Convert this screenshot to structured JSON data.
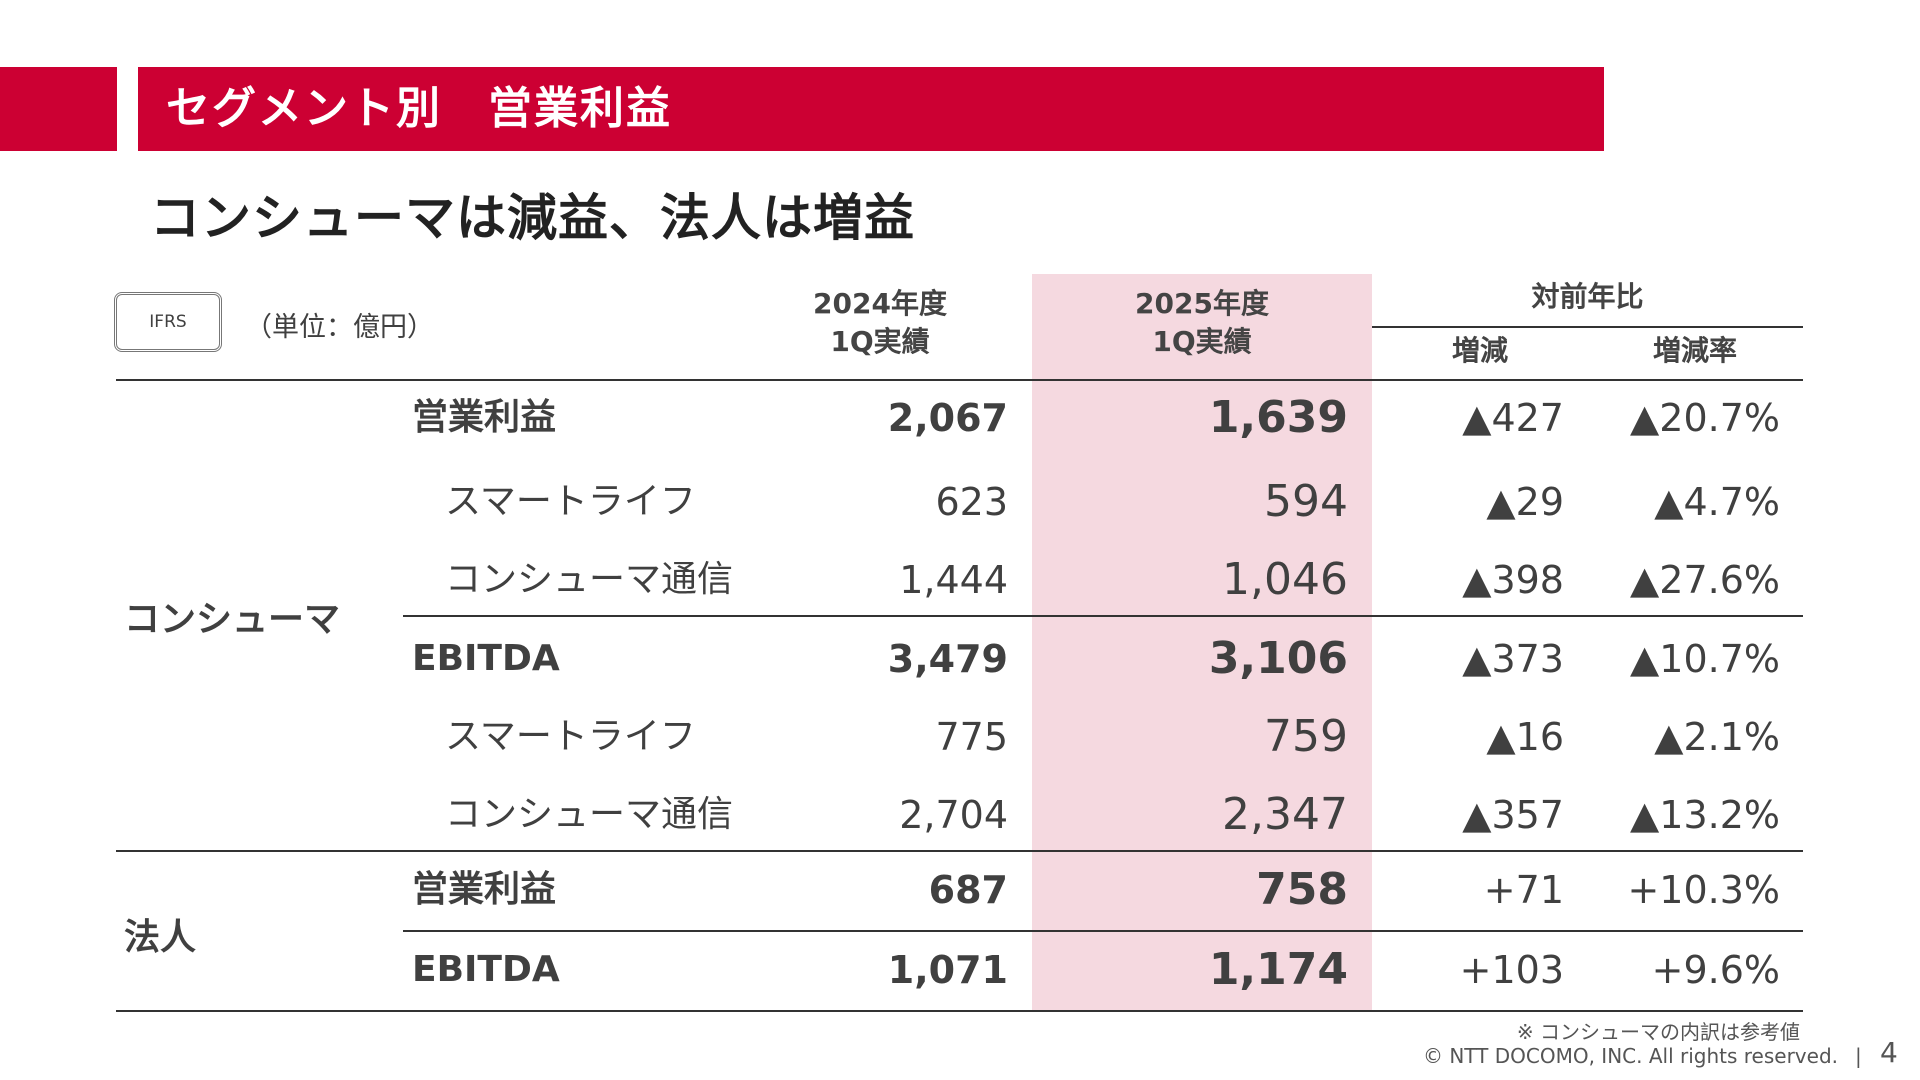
{
  "header": {
    "section_title": "セグメント別　営業利益",
    "headline": "コンシューマは減益、法人は増益"
  },
  "meta": {
    "standard": "IFRS",
    "unit": "（単位：億円）"
  },
  "columns": {
    "fy2024_line1": "2024年度",
    "fy2024_line2": "1Q実績",
    "fy2025_line1": "2025年度",
    "fy2025_line2": "1Q実績",
    "yoy": "対前年比",
    "change": "増減",
    "rate": "増減率"
  },
  "groups": [
    {
      "label": "コンシューマ"
    },
    {
      "label": "法人"
    }
  ],
  "rows": [
    {
      "label": "営業利益",
      "v2024": "2,067",
      "v2025": "1,639",
      "change": "▲427",
      "rate": "▲20.7%"
    },
    {
      "label": "スマートライフ",
      "v2024": "623",
      "v2025": "594",
      "change": "▲29",
      "rate": "▲4.7%"
    },
    {
      "label": "コンシューマ通信",
      "v2024": "1,444",
      "v2025": "1,046",
      "change": "▲398",
      "rate": "▲27.6%"
    },
    {
      "label": "EBITDA",
      "v2024": "3,479",
      "v2025": "3,106",
      "change": "▲373",
      "rate": "▲10.7%"
    },
    {
      "label": "スマートライフ",
      "v2024": "775",
      "v2025": "759",
      "change": "▲16",
      "rate": "▲2.1%"
    },
    {
      "label": "コンシューマ通信",
      "v2024": "2,704",
      "v2025": "2,347",
      "change": "▲357",
      "rate": "▲13.2%"
    },
    {
      "label": "営業利益",
      "v2024": "687",
      "v2025": "758",
      "change": "+71",
      "rate": "+10.3%"
    },
    {
      "label": "EBITDA",
      "v2024": "1,071",
      "v2025": "1,174",
      "change": "+103",
      "rate": "+9.6%"
    }
  ],
  "footer": {
    "note": "※ コンシューマの内訳は参考値",
    "copyright": "© NTT DOCOMO, INC.  All rights reserved.",
    "separator": "|",
    "page": "4"
  },
  "colors": {
    "accent": "#cc0033",
    "highlight": "#f5d9e0"
  }
}
